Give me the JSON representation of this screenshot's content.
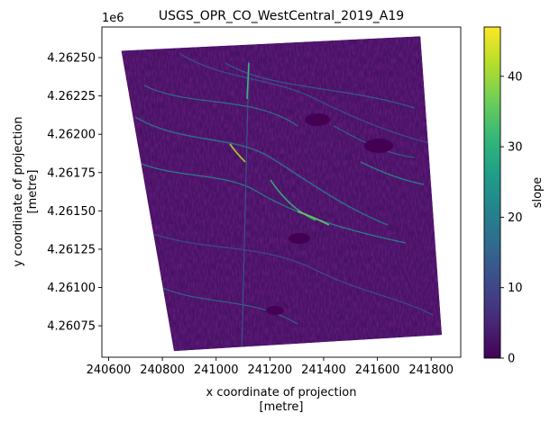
{
  "chart_data": {
    "type": "heatmap",
    "title": "USGS_OPR_CO_WestCentral_2019_A19",
    "xlabel": [
      "x coordinate of projection",
      "[metre]"
    ],
    "ylabel": [
      "y coordinate of projection",
      "[metre]"
    ],
    "x_ticks": [
      240600,
      240800,
      241000,
      241200,
      241400,
      241600,
      241800
    ],
    "x_tick_labels": [
      "240600",
      "240800",
      "241000",
      "241200",
      "241400",
      "241600",
      "241800"
    ],
    "y_ticks": [
      4260750,
      4261000,
      4261250,
      4261500,
      4261750,
      4262000,
      4262250,
      4262500
    ],
    "y_tick_labels": [
      "4.26075",
      "4.26100",
      "4.26125",
      "4.26150",
      "4.26175",
      "4.26200",
      "4.26225",
      "4.26250"
    ],
    "y_offset_label": "1e6",
    "xlim": [
      240575,
      241910
    ],
    "ylim": [
      4260545,
      4262700
    ],
    "raster_corners": [
      {
        "x": 240647,
        "y": 4262545
      },
      {
        "x": 241760,
        "y": 4262640
      },
      {
        "x": 241840,
        "y": 4260690
      },
      {
        "x": 240843,
        "y": 4260585
      }
    ],
    "colorbar": {
      "label": "slope",
      "min": 0,
      "max": 47,
      "ticks": [
        0,
        10,
        20,
        30,
        40
      ],
      "tick_labels": [
        "0",
        "10",
        "20",
        "30",
        "40"
      ],
      "colormap": "viridis",
      "colors": [
        "#440154",
        "#482878",
        "#3e4989",
        "#31688e",
        "#26828e",
        "#1f9e89",
        "#35b779",
        "#6ece58",
        "#b5de2b",
        "#fde725"
      ]
    },
    "grid": false
  }
}
